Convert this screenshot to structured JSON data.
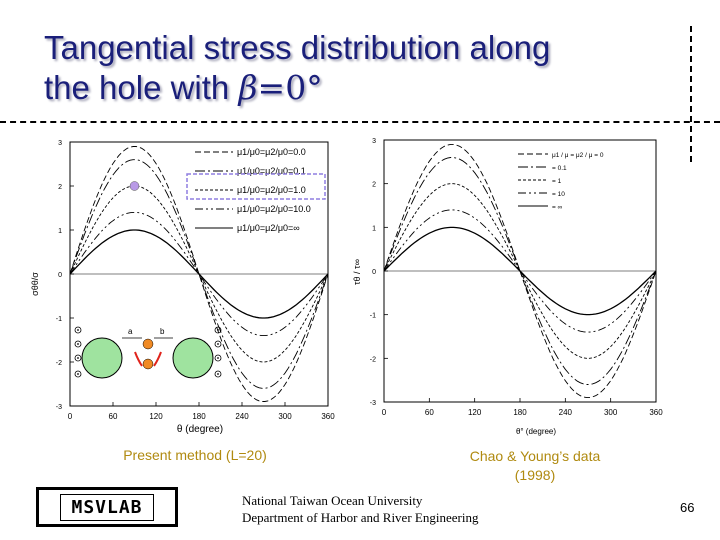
{
  "slide": {
    "title_line1": "Tangential stress distribution along",
    "title_line2": "the hole with ",
    "title_symbol": "β",
    "title_suffix": "=0°",
    "caption_left": "Present method (L=20)",
    "caption_right_line1": "Chao & Young’s data",
    "caption_right_line2": "(1998)",
    "logo_text": "MSVLAB",
    "org_line1": "National Taiwan Ocean University",
    "org_line2": "Department of Harbor and River Engineering",
    "page_number": "66"
  },
  "colors": {
    "title": "#1a1f7a",
    "caption": "#b08a10",
    "marker": "#b99ae6",
    "highlight": "#8f7fe0",
    "hole_fill": "#9fe39f"
  },
  "chart_data": [
    {
      "type": "line",
      "xlabel": "θ (degree)",
      "ylabel": "σθθ/σ",
      "x_ticks": [
        "0",
        "60",
        "120",
        "180",
        "240",
        "300",
        "360"
      ],
      "y_ticks": [
        "3",
        "2",
        "1",
        "0",
        "-1",
        "-2",
        "-3"
      ],
      "xlim": [
        0,
        360
      ],
      "ylim": [
        -3,
        3
      ],
      "legend_position": "top-right",
      "legend": [
        "μ1/μ0=μ2/μ0=0.0",
        "μ1/μ0=μ2/μ0=0.1",
        "μ1/μ0=μ2/μ0=1.0",
        "μ1/μ0=μ2/μ0=10.0",
        "μ1/μ0=μ2/μ0=∞"
      ],
      "amplitudes": [
        2.9,
        2.6,
        2.0,
        1.4,
        1.0
      ],
      "highlight_point": {
        "x": 90,
        "y": 2.0
      },
      "inset_label_a": "a",
      "inset_label_b": "b"
    },
    {
      "type": "line",
      "xlabel": "θ° (degree)",
      "ylabel": "τθ / τ∞",
      "x_ticks": [
        "0",
        "60",
        "120",
        "180",
        "240",
        "300",
        "360"
      ],
      "y_ticks": [
        "3",
        "2",
        "1",
        "0",
        "-1",
        "-2",
        "-3"
      ],
      "xlim": [
        0,
        360
      ],
      "ylim": [
        -3,
        3
      ],
      "legend_position": "top-right",
      "legend": [
        "μ1 / μ = μ2 / μ = 0",
        "= 0.1",
        "= 1",
        "= 10",
        "= ∞"
      ],
      "amplitudes": [
        2.9,
        2.6,
        2.0,
        1.4,
        1.0
      ]
    }
  ]
}
